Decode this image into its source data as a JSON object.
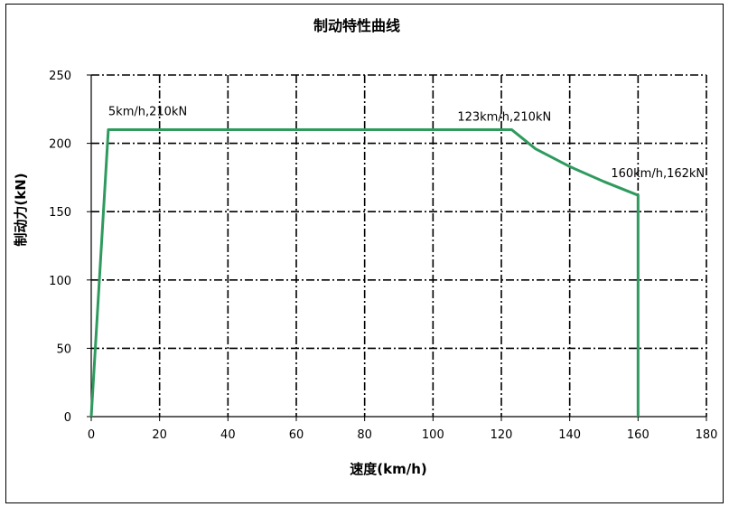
{
  "chart_data": {
    "type": "line",
    "title": "制动特性曲线",
    "xlabel": "速度(km/h)",
    "ylabel": "制动力(kN)",
    "xlim": [
      0,
      180
    ],
    "ylim": [
      0,
      250
    ],
    "x_ticks": [
      0,
      20,
      40,
      60,
      80,
      100,
      120,
      140,
      160,
      180
    ],
    "y_ticks": [
      0,
      50,
      100,
      150,
      200,
      250
    ],
    "grid": true,
    "series": [
      {
        "color": "#2e9a5e",
        "x": [
          0,
          5,
          123,
          130,
          140,
          150,
          160,
          160
        ],
        "y": [
          0,
          210,
          210,
          196,
          183,
          172,
          162,
          0
        ]
      }
    ],
    "annotations": [
      {
        "text": "5km/h,210kN",
        "x": 5,
        "y": 210
      },
      {
        "text": "123km/h,210kN",
        "x": 123,
        "y": 210
      },
      {
        "text": "160km/h,162kN",
        "x": 160,
        "y": 162
      }
    ]
  }
}
